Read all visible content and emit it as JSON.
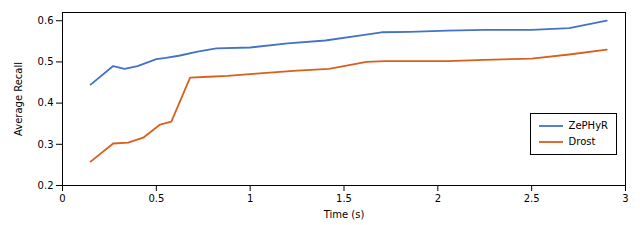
{
  "chart_data": {
    "type": "line",
    "title": "",
    "xlabel": "Time (s)",
    "ylabel": "Average Recall",
    "xlim": [
      0,
      3
    ],
    "ylim": [
      0.2,
      0.62
    ],
    "xticks": [
      0,
      0.5,
      1,
      1.5,
      2,
      2.5,
      3
    ],
    "yticks": [
      0.2,
      0.3,
      0.4,
      0.5,
      0.6
    ],
    "grid": false,
    "legend": "lower right",
    "series": [
      {
        "name": "ZePHyR",
        "color": "#4472c4",
        "x": [
          0.15,
          0.27,
          0.33,
          0.4,
          0.5,
          0.55,
          0.62,
          0.72,
          0.82,
          1.0,
          1.2,
          1.4,
          1.6,
          1.7,
          1.85,
          2.05,
          2.25,
          2.5,
          2.7,
          2.9
        ],
        "values": [
          0.445,
          0.49,
          0.483,
          0.49,
          0.507,
          0.51,
          0.515,
          0.525,
          0.533,
          0.535,
          0.545,
          0.552,
          0.565,
          0.572,
          0.573,
          0.576,
          0.578,
          0.578,
          0.582,
          0.6
        ]
      },
      {
        "name": "Drost",
        "color": "#d95f1e",
        "x": [
          0.15,
          0.27,
          0.35,
          0.43,
          0.52,
          0.58,
          0.68,
          0.78,
          0.88,
          1.05,
          1.25,
          1.42,
          1.62,
          1.72,
          1.88,
          2.05,
          2.25,
          2.5,
          2.7,
          2.9
        ],
        "values": [
          0.258,
          0.302,
          0.304,
          0.316,
          0.348,
          0.355,
          0.462,
          0.464,
          0.466,
          0.472,
          0.479,
          0.483,
          0.5,
          0.502,
          0.502,
          0.502,
          0.505,
          0.508,
          0.518,
          0.53
        ]
      }
    ]
  }
}
